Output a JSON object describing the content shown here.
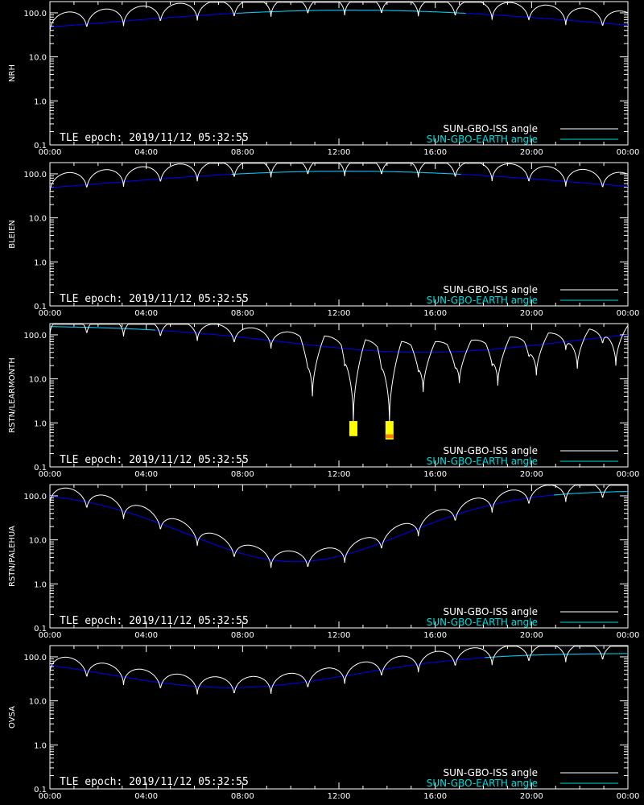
{
  "colors": {
    "background": "#000000",
    "iss_line": "#ffffff",
    "iss_occulted": "#808080",
    "earth_line": "#0000ff",
    "earth_visible": "#00dcdc",
    "flare_yellow": "#ffff00",
    "flare_orange": "#ff8000"
  },
  "chart_data": [
    {
      "type": "line",
      "station": "NRH",
      "ylabel": "NRH",
      "yscale": "log",
      "ylim": [
        0.1,
        180
      ],
      "xlim_hours": [
        0,
        24
      ],
      "xticklabels": [
        "00:00",
        "04:00",
        "08:00",
        "12:00",
        "16:00",
        "20:00",
        "00:00"
      ],
      "yticklabels": [
        "0.1",
        "1.0",
        "10.0",
        "100.0"
      ],
      "annotation": "TLE epoch: 2019/11/12 05:32:55",
      "legend": [
        "SUN-GBO-ISS angle",
        "SUN-GBO-EARTH angle"
      ],
      "legend_position": "bottom-right",
      "earth_curve": {
        "min": 30,
        "max": 115,
        "peak_hour": 12.5,
        "width": 10
      },
      "iss_curve": {
        "amp": 1.4,
        "dip_depth": 0.55,
        "dip_floor": null
      },
      "flares": []
    },
    {
      "type": "line",
      "station": "BLEIEN",
      "ylabel": "BLEIEN",
      "yscale": "log",
      "ylim": [
        0.1,
        180
      ],
      "xlim_hours": [
        0,
        24
      ],
      "xticklabels": [
        "00:00",
        "04:00",
        "08:00",
        "12:00",
        "16:00",
        "20:00",
        "00:00"
      ],
      "yticklabels": [
        "0.1",
        "1.0",
        "10.0",
        "100.0"
      ],
      "annotation": "TLE epoch: 2019/11/12 05:32:55",
      "legend": [
        "SUN-GBO-ISS angle",
        "SUN-GBO-EARTH angle"
      ],
      "legend_position": "bottom-right",
      "earth_curve": {
        "min": 30,
        "max": 115,
        "peak_hour": 12.3,
        "width": 10
      },
      "iss_curve": {
        "amp": 1.4,
        "dip_depth": 0.55,
        "dip_floor": null
      },
      "flares": []
    },
    {
      "type": "line",
      "station": "RSTN/LEARMONTH",
      "ylabel": "RSTN/LEARMONTH",
      "yscale": "log",
      "ylim": [
        0.1,
        180
      ],
      "xlim_hours": [
        0,
        24
      ],
      "xticklabels": [
        "00:00",
        "04:00",
        "08:00",
        "12:00",
        "16:00",
        "20:00",
        "00:00"
      ],
      "yticklabels": [
        "0.1",
        "1.0",
        "10.0",
        "100.0"
      ],
      "annotation": "TLE epoch: 2019/11/12 05:32:55",
      "legend": [
        "SUN-GBO-ISS angle",
        "SUN-GBO-EARTH angle"
      ],
      "legend_position": "bottom-right",
      "earth_curve": {
        "min": 40,
        "max": 160,
        "trough_hour": 15.5,
        "width": 9
      },
      "iss_curve": {
        "amp": 1.2,
        "dip_depth": 0.5,
        "deep_dips": [
          [
            10.9,
            4
          ],
          [
            12.6,
            1.1
          ],
          [
            14.1,
            1.1
          ],
          [
            15.5,
            5
          ],
          [
            17.0,
            8
          ],
          [
            18.6,
            7
          ],
          [
            20.2,
            12
          ],
          [
            21.9,
            17
          ],
          [
            23.5,
            20
          ]
        ]
      },
      "flares": [
        {
          "hour": 12.6,
          "segments": [
            {
              "from": 0.5,
              "to": 1.1,
              "color": "#ffff00"
            }
          ]
        },
        {
          "hour": 14.1,
          "segments": [
            {
              "from": 0.42,
              "to": 1.1,
              "color": "#ffff00"
            },
            {
              "from": 0.55,
              "to": 0.45,
              "color": "#ff8000"
            }
          ]
        }
      ]
    },
    {
      "type": "line",
      "station": "RSTN/PALEHUA",
      "ylabel": "RSTN/PALEHUA",
      "yscale": "log",
      "ylim": [
        0.1,
        180
      ],
      "xlim_hours": [
        0,
        24
      ],
      "xticklabels": [
        "00:00",
        "04:00",
        "08:00",
        "12:00",
        "16:00",
        "20:00",
        "00:00"
      ],
      "yticklabels": [
        "0.1",
        "1.0",
        "10.0",
        "100.0"
      ],
      "annotation": "TLE epoch: 2019/11/12 05:32:55",
      "legend": [
        "SUN-GBO-ISS angle",
        "SUN-GBO-EARTH angle"
      ],
      "legend_position": "bottom-right",
      "earth_curve": {
        "min": 3.2,
        "max": 130,
        "trough_hour": 10.2,
        "width": 7
      },
      "iss_curve": {
        "amp": 1.2,
        "dip_depth": 0.5
      },
      "flares": []
    },
    {
      "type": "line",
      "station": "OVSA",
      "ylabel": "OVSA",
      "yscale": "log",
      "ylim": [
        0.1,
        180
      ],
      "xlim_hours": [
        0,
        24
      ],
      "xticklabels": [
        "00:00",
        "04:00",
        "08:00",
        "12:00",
        "16:00",
        "20:00",
        "00:00"
      ],
      "yticklabels": [
        "0.1",
        "1.0",
        "10.0",
        "100.0"
      ],
      "annotation": "TLE epoch: 2019/11/12 05:32:55",
      "legend": [
        "SUN-GBO-ISS angle",
        "SUN-GBO-EARTH angle"
      ],
      "legend_position": "bottom-right",
      "earth_curve": {
        "min": 20,
        "max": 120,
        "trough_hour": 7.5,
        "width": 8
      },
      "iss_curve": {
        "amp": 1.2,
        "dip_depth": 0.5
      },
      "flares": []
    }
  ]
}
